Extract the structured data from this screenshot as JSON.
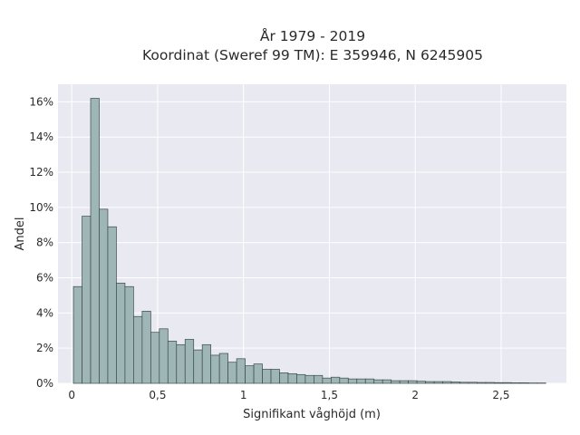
{
  "chart_data": {
    "type": "bar",
    "title": "År 1979 - 2019",
    "subtitle": "Koordinat (Sweref 99 TM): E 359946, N 6245905",
    "xlabel": "Signifikant våghöjd (m)",
    "ylabel": "Andel",
    "x_ticks": [
      {
        "value": 0,
        "label": "0"
      },
      {
        "value": 0.5,
        "label": "0,5"
      },
      {
        "value": 1,
        "label": "1"
      },
      {
        "value": 1.5,
        "label": "1,5"
      },
      {
        "value": 2,
        "label": "2"
      },
      {
        "value": 2.5,
        "label": "2,5"
      }
    ],
    "y_ticks": [
      {
        "value": 0,
        "label": "0%"
      },
      {
        "value": 2,
        "label": "2%"
      },
      {
        "value": 4,
        "label": "4%"
      },
      {
        "value": 6,
        "label": "6%"
      },
      {
        "value": 8,
        "label": "8%"
      },
      {
        "value": 10,
        "label": "10%"
      },
      {
        "value": 12,
        "label": "12%"
      },
      {
        "value": 14,
        "label": "14%"
      },
      {
        "value": 16,
        "label": "16%"
      }
    ],
    "xlim": [
      -0.08,
      2.88
    ],
    "ylim": [
      0,
      17.0
    ],
    "grid": true,
    "bin_start": 0.01,
    "bin_width": 0.05,
    "values": [
      5.5,
      9.5,
      16.2,
      9.9,
      8.9,
      5.7,
      5.5,
      3.8,
      4.1,
      2.9,
      3.1,
      2.4,
      2.2,
      2.5,
      1.9,
      2.2,
      1.6,
      1.7,
      1.2,
      1.4,
      1.0,
      1.1,
      0.8,
      0.8,
      0.6,
      0.55,
      0.5,
      0.45,
      0.45,
      0.3,
      0.35,
      0.3,
      0.25,
      0.25,
      0.25,
      0.2,
      0.2,
      0.15,
      0.15,
      0.15,
      0.12,
      0.1,
      0.1,
      0.1,
      0.08,
      0.06,
      0.06,
      0.05,
      0.05,
      0.04,
      0.04,
      0.03,
      0.03,
      0.02,
      0.02
    ],
    "colors": {
      "bar_fill": "#9fb6b6",
      "bar_stroke": "#3c4a4a",
      "plot_bg": "#e9e9f1",
      "grid": "#ffffff"
    }
  }
}
